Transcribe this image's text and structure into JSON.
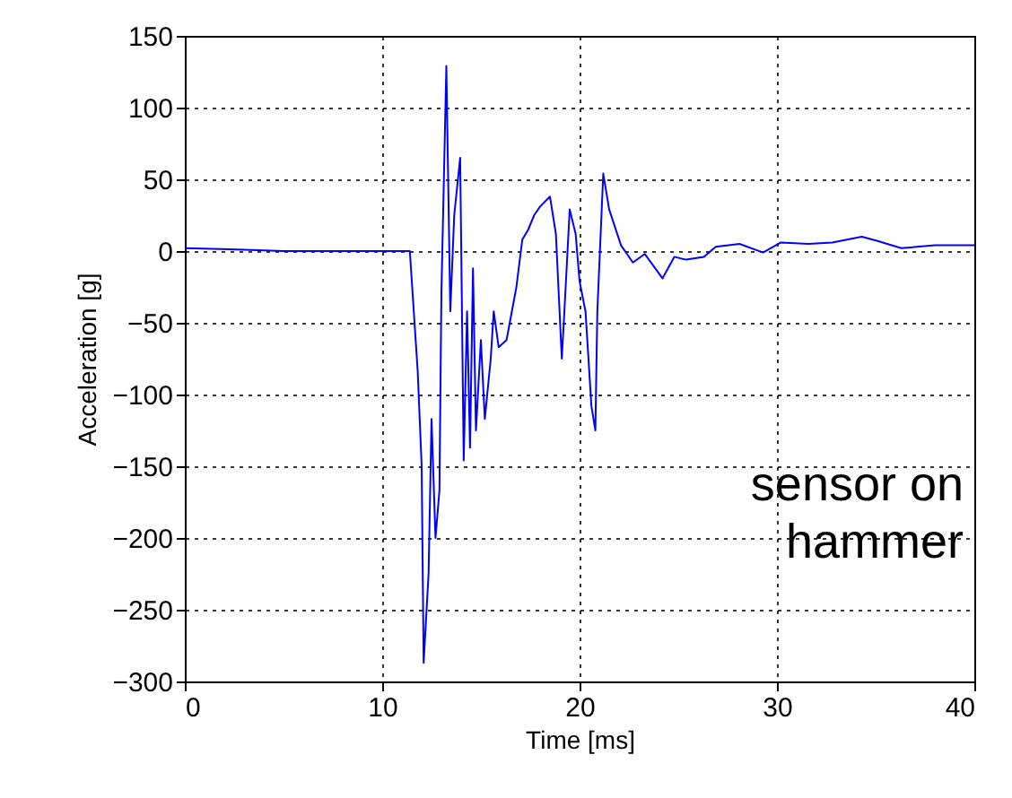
{
  "chart_data": {
    "type": "line",
    "xlabel": "Time [ms]",
    "ylabel": "Acceleration [g]",
    "x": [
      0,
      3,
      5,
      11.4,
      11.8,
      12.0,
      12.1,
      12.35,
      12.5,
      12.7,
      12.9,
      13.0,
      13.25,
      13.45,
      13.65,
      13.95,
      14.13,
      14.3,
      14.45,
      14.6,
      14.75,
      15.0,
      15.2,
      15.5,
      15.65,
      15.9,
      16.3,
      16.8,
      17.1,
      17.4,
      17.7,
      18.0,
      18.5,
      18.8,
      19.1,
      19.2,
      19.5,
      19.8,
      20.0,
      20.3,
      20.6,
      20.8,
      20.9,
      21.2,
      21.5,
      22.1,
      22.7,
      23.3,
      24.2,
      24.8,
      25.4,
      26.3,
      26.9,
      28.1,
      29.3,
      30.2,
      31.6,
      32.8,
      34.3,
      35.1,
      36.3,
      38.0,
      40
    ],
    "series": [
      {
        "color": "#0000ff",
        "values": [
          2,
          1,
          0,
          0,
          -84,
          -150,
          -287,
          -225,
          -117,
          -200,
          -167,
          -29,
          129,
          -42,
          25,
          65,
          -146,
          -42,
          -137,
          -12,
          -125,
          -62,
          -117,
          -75,
          -42,
          -67,
          -62,
          -25,
          8,
          15,
          25,
          31,
          38,
          12,
          -75,
          -50,
          29,
          12,
          -21,
          -42,
          -108,
          -125,
          -42,
          54,
          29,
          4,
          -8,
          -2,
          -19,
          -4,
          -6,
          -4,
          3,
          5,
          -1,
          6,
          5,
          6,
          10,
          7,
          2,
          4,
          4
        ]
      }
    ],
    "xlim": [
      0,
      40
    ],
    "xticks": [
      0,
      10,
      20,
      30,
      40
    ],
    "ylim": [
      -300,
      150
    ],
    "yticks": [
      -300,
      -250,
      -200,
      -150,
      -100,
      -50,
      0,
      50,
      100,
      150
    ],
    "grid": true,
    "marker": "none",
    "line_style": "solid",
    "annotations": [
      "sensor on\nhammer"
    ]
  }
}
